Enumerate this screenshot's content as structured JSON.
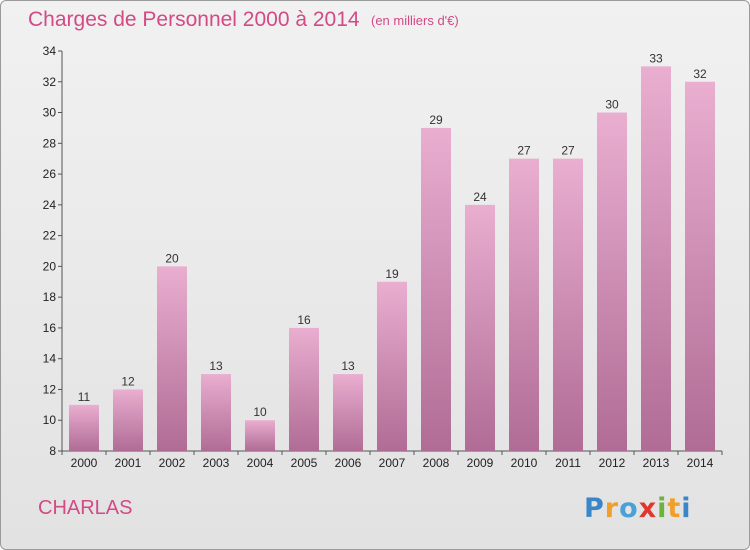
{
  "header": {
    "title": "Charges de Personnel 2000 à 2014",
    "subtitle": "(en milliers d'€)"
  },
  "footer": {
    "municipality": "CHARLAS",
    "logo_text": "Proxiti"
  },
  "colors": {
    "accent": "#d24a86",
    "bar_top": "#e9aed0",
    "bar_bottom": "#b06c95"
  },
  "chart_data": {
    "type": "bar",
    "categories": [
      "2000",
      "2001",
      "2002",
      "2003",
      "2004",
      "2005",
      "2006",
      "2007",
      "2008",
      "2009",
      "2010",
      "2011",
      "2012",
      "2013",
      "2014"
    ],
    "values": [
      11,
      12,
      20,
      13,
      10,
      16,
      13,
      19,
      29,
      24,
      27,
      27,
      30,
      33,
      32
    ],
    "title": "Charges de Personnel 2000 à 2014",
    "subtitle": "(en milliers d'€)",
    "xlabel": "",
    "ylabel": "",
    "ylim": [
      8,
      34
    ],
    "yticks": [
      8,
      10,
      12,
      14,
      16,
      18,
      20,
      22,
      24,
      26,
      28,
      30,
      32,
      34
    ],
    "grid": false,
    "legend": "none"
  }
}
